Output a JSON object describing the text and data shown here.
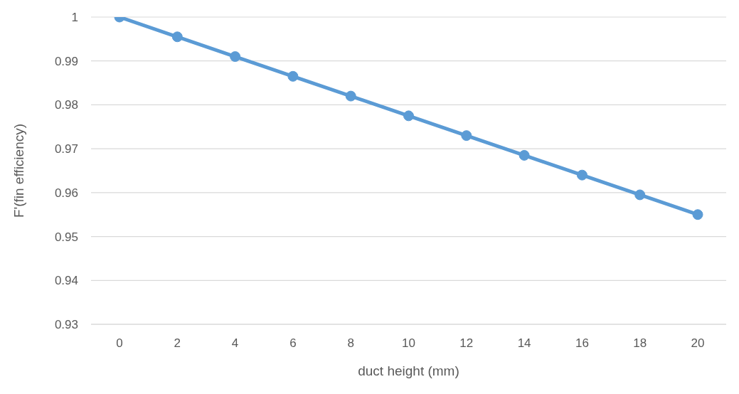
{
  "chart_data": {
    "type": "line",
    "xlabel": "duct height (mm)",
    "ylabel": "F'(fin efficiency)",
    "categories": [
      "0",
      "2",
      "4",
      "6",
      "8",
      "10",
      "12",
      "14",
      "16",
      "18",
      "20"
    ],
    "series": [
      {
        "color": "#5b9bd5",
        "values": [
          1,
          0.9955,
          0.991,
          0.9865,
          0.982,
          0.9775,
          0.973,
          0.9685,
          0.964,
          0.9595,
          0.955
        ]
      }
    ],
    "ylim": [
      0.93,
      1
    ],
    "yticks": [
      0.93,
      0.94,
      0.95,
      0.96,
      0.97,
      0.98,
      0.99,
      1
    ],
    "grid": "y",
    "legend": false,
    "marker": "circle",
    "line_style": "solid"
  }
}
